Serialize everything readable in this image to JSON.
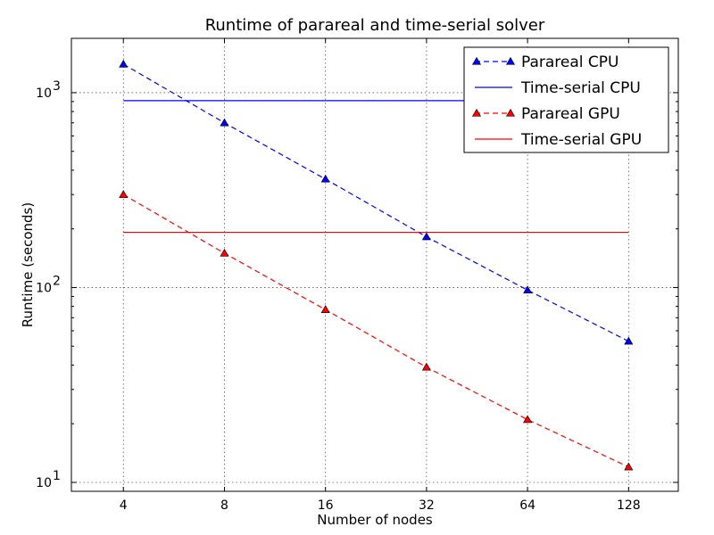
{
  "chart_data": {
    "type": "line",
    "title": "Runtime of parareal and time-serial solver",
    "xlabel": "Number of nodes",
    "ylabel": "Runtime (seconds)",
    "x_scale": "log2",
    "y_scale": "log10",
    "x": [
      4,
      8,
      16,
      32,
      64,
      128
    ],
    "x_tick_labels": [
      "4",
      "8",
      "16",
      "32",
      "64",
      "128"
    ],
    "xlim": [
      2.8,
      180
    ],
    "ylim": [
      9,
      1900
    ],
    "y_ticks": [
      {
        "value": 10,
        "base": "10",
        "exp": "1"
      },
      {
        "value": 100,
        "base": "10",
        "exp": "2"
      },
      {
        "value": 1000,
        "base": "10",
        "exp": "3"
      }
    ],
    "grid": true,
    "legend_position": "top-right",
    "series": [
      {
        "name": "Parareal CPU",
        "values": [
          1400,
          700,
          360,
          182,
          97,
          53
        ],
        "color": "#0000ff",
        "line_style": "dashed",
        "marker": "triangle"
      },
      {
        "name": "Time-serial CPU",
        "values": [
          910,
          910,
          910,
          910,
          910,
          910
        ],
        "color": "#0000ff",
        "line_style": "solid",
        "marker": "none"
      },
      {
        "name": "Parareal GPU",
        "values": [
          300,
          150,
          77,
          39,
          21,
          12
        ],
        "color": "#ff0000",
        "line_style": "dashed",
        "marker": "triangle"
      },
      {
        "name": "Time-serial GPU",
        "values": [
          192,
          192,
          192,
          192,
          192,
          192
        ],
        "color": "#ff0000",
        "line_style": "solid",
        "marker": "none"
      }
    ]
  }
}
